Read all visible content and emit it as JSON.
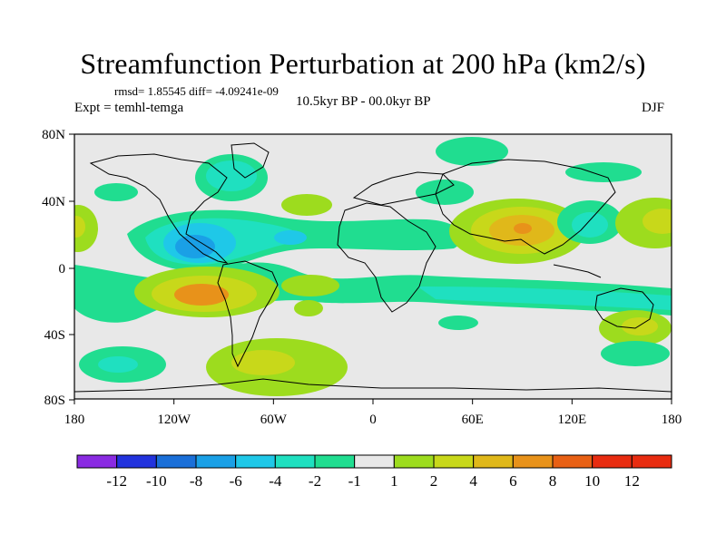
{
  "title": "Streamfunction Perturbation at 200 hPa (km2/s)",
  "stats": "rmsd= 1.85545  diff= -4.09241e-09",
  "expt": "Expt = temhl-temga",
  "period": "10.5kyr BP - 00.0kyr BP",
  "season": "DJF",
  "lat_ticks": [
    "80N",
    "40N",
    "0",
    "40S",
    "80S"
  ],
  "lon_ticks": [
    "180",
    "120W",
    "60W",
    "0",
    "60E",
    "120E",
    "180"
  ],
  "colorbar": {
    "labels": [
      "-12",
      "-10",
      "-8",
      "-6",
      "-4",
      "-2",
      "-1",
      "1",
      "2",
      "4",
      "6",
      "8",
      "10",
      "12"
    ],
    "colors": [
      "#8a2be2",
      "#2233dd",
      "#1a6fd8",
      "#1aa0e6",
      "#1fc8e8",
      "#1fe0c0",
      "#20dd90",
      "#e8e8e8",
      "#9ddc1e",
      "#c8d81a",
      "#e0b81a",
      "#e8921a",
      "#e86014",
      "#e82c10"
    ]
  },
  "colors": {
    "background": "#e8e8e8",
    "coast": "#000000"
  }
}
